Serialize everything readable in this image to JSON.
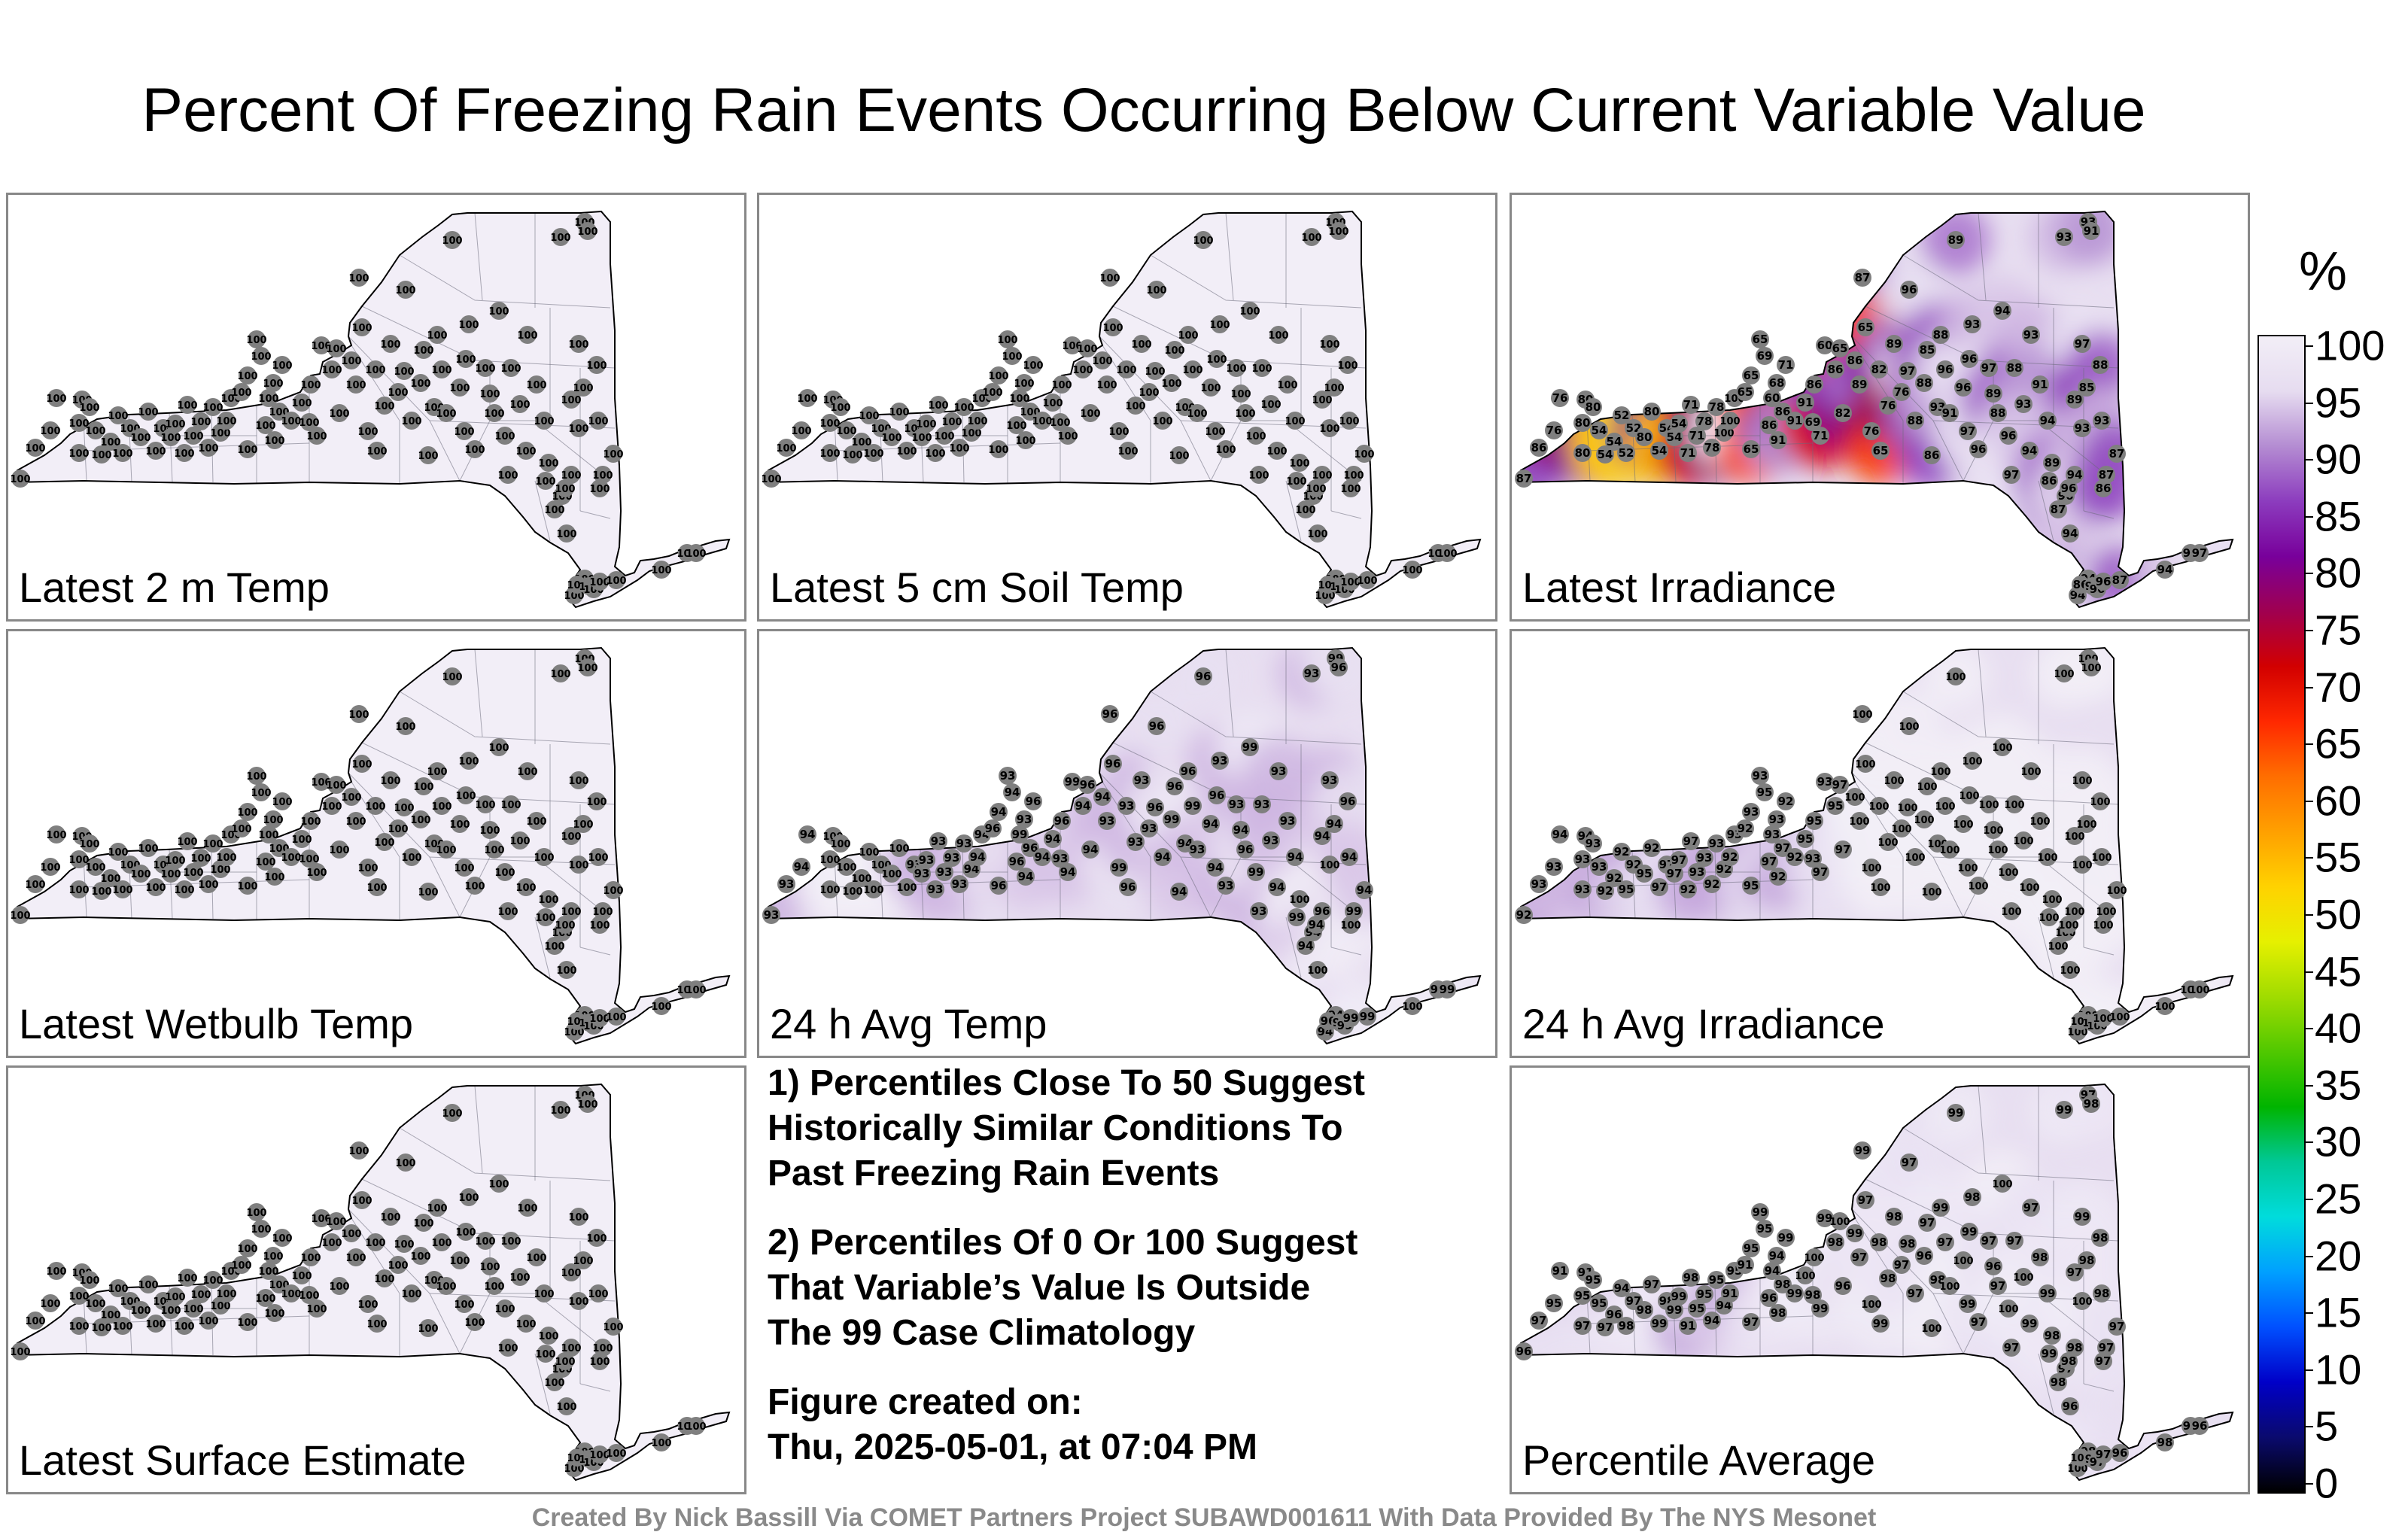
{
  "title": "Percent Of Freezing Rain Events Occurring Below Current Variable Value",
  "panels": [
    {
      "id": "temp2m",
      "label": "Latest 2 m Temp",
      "mode": "uniform",
      "value": 100
    },
    {
      "id": "soil5cm",
      "label": "Latest 5 cm Soil Temp",
      "mode": "uniform",
      "value": 100
    },
    {
      "id": "irradiance",
      "label": "Latest Irradiance",
      "mode": "irradiance"
    },
    {
      "id": "wetbulb",
      "label": "Latest Wetbulb Temp",
      "mode": "uniform",
      "value": 100
    },
    {
      "id": "avgtemp24",
      "label": "24 h Avg Temp",
      "mode": "avgtemp"
    },
    {
      "id": "avgirr24",
      "label": "24 h Avg Irradiance",
      "mode": "avgirr"
    },
    {
      "id": "surface",
      "label": "Latest Surface Estimate",
      "mode": "uniform",
      "value": 100
    },
    {
      "id": "average",
      "label": "Percentile Average",
      "mode": "average"
    }
  ],
  "notes": {
    "note1": "1) Percentiles Close To 50 Suggest\nHistorically Similar Conditions To\nPast Freezing Rain Events",
    "note2": "2) Percentiles Of 0 Or 100 Suggest\nThat Variable’s Value Is Outside\nThe 99 Case Climatology",
    "note3": "Figure created on:\nThu, 2025-05-01, at 07:04 PM"
  },
  "colorbar": {
    "unit": "%",
    "ticks": [
      "100",
      "95",
      "90",
      "85",
      "80",
      "75",
      "70",
      "65",
      "60",
      "55",
      "50",
      "45",
      "40",
      "35",
      "30",
      "25",
      "20",
      "15",
      "10",
      "5",
      "0"
    ],
    "colors": [
      "#000000",
      "#0a0a6e",
      "#0000c8",
      "#0050ff",
      "#00a0ff",
      "#00dcdc",
      "#00c896",
      "#00b400",
      "#50c800",
      "#a0dc00",
      "#e6f000",
      "#ffd200",
      "#ffa000",
      "#ff6e00",
      "#ff2800",
      "#d20000",
      "#a00050",
      "#78009b",
      "#8c3cbe",
      "#b48cd2",
      "#e6dcf0",
      "#f2eef7"
    ]
  },
  "credit": "Created By Nick Bassill Via COMET Partners Project SUBAWD001611 With Data Provided By The NYS Mesonet"
}
